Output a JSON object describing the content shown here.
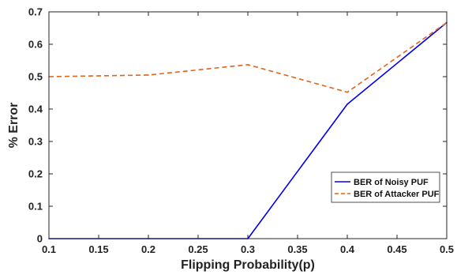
{
  "chart_data": {
    "type": "line",
    "title": "",
    "xlabel": "Flipping Probability(p)",
    "ylabel": "% Error",
    "xlim": [
      0.1,
      0.5
    ],
    "ylim": [
      0,
      0.7
    ],
    "x_ticks": [
      "0.1",
      "0.15",
      "0.2",
      "0.25",
      "0.3",
      "0.35",
      "0.4",
      "0.45",
      "0.5"
    ],
    "y_ticks": [
      "0",
      "0.1",
      "0.2",
      "0.3",
      "0.4",
      "0.5",
      "0.6",
      "0.7"
    ],
    "grid": false,
    "legend_position": "lower-right",
    "series": [
      {
        "name": "BER of Noisy PUF",
        "color": "#0000ee",
        "dash": "solid",
        "x": [
          0.1,
          0.2,
          0.3,
          0.4,
          0.5
        ],
        "y": [
          0,
          0,
          0,
          0.415,
          0.667
        ]
      },
      {
        "name": "BER of Attacker PUF",
        "color": "#e0651a",
        "dash": "dashed",
        "x": [
          0.1,
          0.2,
          0.3,
          0.4,
          0.5
        ],
        "y": [
          0.5,
          0.505,
          0.537,
          0.452,
          0.667
        ]
      }
    ]
  }
}
